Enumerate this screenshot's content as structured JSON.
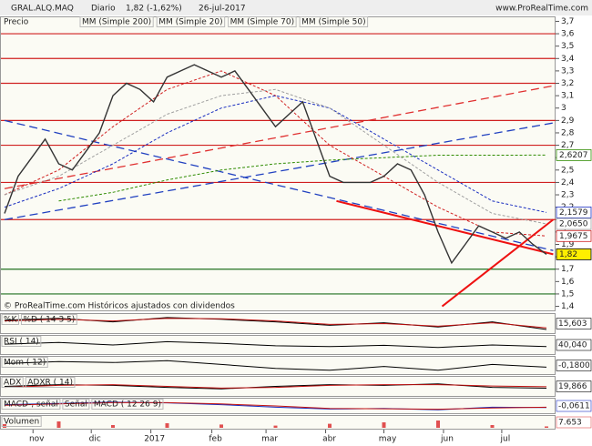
{
  "chart_data": {
    "type": "line",
    "header": {
      "symbol": "GRAL.ALQ.MAQ",
      "period": "Diario",
      "quote": "1,82 (-1,62%)",
      "date": "26-jul-2017",
      "site": "www.ProRealTime.com"
    },
    "price_label": "Precio",
    "footnote": "© ProRealTime.com  Históricos ajustados con dividendos",
    "xlim": [
      0,
      40
    ],
    "xticks": [
      {
        "value": 2.1,
        "label": "nov"
      },
      {
        "value": 6.4,
        "label": "dic"
      },
      {
        "value": 10.8,
        "label": "2017"
      },
      {
        "value": 15.3,
        "label": "feb"
      },
      {
        "value": 19.3,
        "label": "mar"
      },
      {
        "value": 23.7,
        "label": "abr"
      },
      {
        "value": 28,
        "label": "may"
      },
      {
        "value": 32.4,
        "label": "jun"
      },
      {
        "value": 36.7,
        "label": "jul"
      }
    ],
    "ylim": [
      1.36,
      3.74
    ],
    "yticks": [
      {
        "value": 3.7,
        "label": "3,7"
      },
      {
        "value": 3.6,
        "label": "3,6"
      },
      {
        "value": 3.5,
        "label": "3,5"
      },
      {
        "value": 3.4,
        "label": "3,4"
      },
      {
        "value": 3.3,
        "label": "3,3"
      },
      {
        "value": 3.2,
        "label": "3,2"
      },
      {
        "value": 3.1,
        "label": "3,1"
      },
      {
        "value": 3,
        "label": "3"
      },
      {
        "value": 2.9,
        "label": "2,9"
      },
      {
        "value": 2.8,
        "label": "2,8"
      },
      {
        "value": 2.7,
        "label": "2,7"
      },
      {
        "value": 2.6,
        "label": "2,6"
      },
      {
        "value": 2.5,
        "label": "2,5"
      },
      {
        "value": 2.4,
        "label": "2,4"
      },
      {
        "value": 2.3,
        "label": "2,3"
      },
      {
        "value": 2.2,
        "label": "2,2"
      },
      {
        "value": 2.1,
        "label": "2,1"
      },
      {
        "value": 2,
        "label": "2"
      },
      {
        "value": 1.9,
        "label": "1,9"
      },
      {
        "value": 1.8,
        "label": "1,8"
      },
      {
        "value": 1.7,
        "label": "1,7"
      },
      {
        "value": 1.6,
        "label": "1,6"
      },
      {
        "value": 1.5,
        "label": "1,5"
      },
      {
        "value": 1.4,
        "label": "1,4"
      }
    ],
    "price": {
      "color": "#333333",
      "x": [
        0,
        1,
        2,
        3,
        4,
        5,
        6,
        7,
        8,
        9,
        10,
        11,
        12,
        13,
        14,
        15,
        16,
        17,
        18,
        19,
        20,
        21,
        22,
        23,
        24,
        25,
        26,
        27,
        28,
        29,
        30,
        31,
        32,
        33,
        34,
        35,
        36,
        37,
        38,
        39,
        40
      ],
      "values": [
        2.15,
        2.45,
        2.6,
        2.75,
        2.55,
        2.5,
        2.65,
        2.8,
        3.1,
        3.2,
        3.15,
        3.05,
        3.25,
        3.3,
        3.35,
        3.3,
        3.25,
        3.3,
        3.15,
        3.0,
        2.85,
        2.95,
        3.05,
        2.75,
        2.45,
        2.4,
        2.4,
        2.4,
        2.45,
        2.55,
        2.5,
        2.3,
        2.0,
        1.75,
        1.9,
        2.05,
        2.0,
        1.95,
        2.0,
        1.9,
        1.82
      ],
      "value_labels": [
        null,
        null,
        null,
        null,
        null,
        null,
        null,
        null,
        null,
        null,
        null,
        null,
        null,
        null,
        null,
        null,
        null,
        null,
        null,
        null,
        null,
        null,
        null,
        null,
        null,
        null,
        null,
        null,
        null,
        null,
        null,
        null,
        null,
        null,
        null,
        null,
        null,
        null,
        null,
        null,
        "1,82"
      ]
    },
    "series": [
      {
        "name": "MM (Simple 200)",
        "color": "#2e8b00",
        "x": [
          4,
          8,
          12,
          16,
          20,
          24,
          28,
          32,
          36,
          40
        ],
        "values": [
          2.25,
          2.32,
          2.42,
          2.5,
          2.55,
          2.58,
          2.6,
          2.62,
          2.62,
          2.6207
        ],
        "value_labels": [
          null,
          null,
          null,
          null,
          null,
          null,
          null,
          null,
          null,
          "2,6207"
        ]
      },
      {
        "name": "MM (Simple 20)",
        "color": "#d02020",
        "x": [
          0,
          4,
          8,
          12,
          16,
          20,
          24,
          28,
          32,
          36,
          40
        ],
        "values": [
          2.3,
          2.5,
          2.85,
          3.15,
          3.3,
          3.1,
          2.7,
          2.45,
          2.2,
          2.0,
          1.9675
        ],
        "value_labels": [
          null,
          null,
          null,
          null,
          null,
          null,
          null,
          null,
          null,
          null,
          "1,9675"
        ]
      },
      {
        "name": "MM (Simple 70)",
        "color": "#1a2ec0",
        "x": [
          0,
          4,
          8,
          12,
          16,
          20,
          24,
          28,
          32,
          36,
          40
        ],
        "values": [
          2.2,
          2.35,
          2.55,
          2.8,
          3.0,
          3.1,
          3.0,
          2.75,
          2.5,
          2.25,
          2.1579
        ],
        "value_labels": [
          null,
          null,
          null,
          null,
          null,
          null,
          null,
          null,
          null,
          null,
          "2,1579"
        ]
      },
      {
        "name": "MM (Simple 50)",
        "color": "#a0a0a0",
        "x": [
          0,
          4,
          8,
          12,
          16,
          20,
          24,
          28,
          32,
          36,
          40
        ],
        "values": [
          2.3,
          2.45,
          2.7,
          2.95,
          3.1,
          3.15,
          3.0,
          2.7,
          2.4,
          2.15,
          2.065
        ],
        "value_labels": [
          null,
          null,
          null,
          null,
          null,
          null,
          null,
          null,
          null,
          null,
          "2,0650"
        ]
      }
    ],
    "levels": {
      "values": [
        3.6,
        3.4,
        3.2,
        2.9,
        2.7,
        2.4,
        2.1,
        1.7,
        1.5
      ],
      "colors": [
        "#d02020",
        "#d02020",
        "#d02020",
        "#d02020",
        "#d02020",
        "#d02020",
        "#d02020",
        "#207020",
        "#207020"
      ]
    },
    "trendlines": [
      {
        "x": [
          0,
          40.5
        ],
        "values": [
          2.35,
          3.18
        ],
        "color": "#e03030",
        "dashed": true
      },
      {
        "x": [
          0,
          40.5
        ],
        "values": [
          2.1,
          2.88
        ],
        "color": "#2040c0",
        "dashed": true
      },
      {
        "x": [
          0,
          40.5
        ],
        "values": [
          2.9,
          1.85
        ],
        "color": "#2040c0",
        "dashed": true
      },
      {
        "x": [
          24.5,
          40.5
        ],
        "values": [
          2.25,
          1.82
        ],
        "color": "#ee1111",
        "dashed": false
      },
      {
        "x": [
          32.3,
          40.5
        ],
        "values": [
          1.4,
          2.1
        ],
        "color": "#ee1111",
        "dashed": false
      }
    ],
    "panels": [
      {
        "labels": [
          {
            "text": "%K",
            "color": "#000000"
          },
          {
            "text": "%D ( 14 3 5)",
            "color": "#c01010"
          }
        ],
        "ylim": [
          0,
          100
        ],
        "x": [
          0,
          4,
          8,
          12,
          16,
          20,
          24,
          28,
          32,
          36,
          40
        ],
        "series": [
          {
            "color": "#000000",
            "values": [
              70,
              80,
              60,
              85,
              75,
              60,
              40,
              55,
              30,
              60,
              15.603
            ],
            "value_labels": [
              null,
              null,
              null,
              null,
              null,
              null,
              null,
              null,
              null,
              null,
              "15,603"
            ]
          },
          {
            "color": "#c01010",
            "values": [
              65,
              75,
              65,
              80,
              78,
              65,
              45,
              50,
              35,
              55,
              25
            ]
          }
        ]
      },
      {
        "labels": [
          {
            "text": "RSI ( 14)",
            "color": "#000000"
          }
        ],
        "ylim": [
          0,
          100
        ],
        "x": [
          0,
          4,
          8,
          12,
          16,
          20,
          24,
          28,
          32,
          36,
          40
        ],
        "series": [
          {
            "color": "#000000",
            "values": [
              55,
              65,
              50,
              70,
              60,
              45,
              40,
              48,
              35,
              50,
              40.04
            ],
            "value_labels": [
              null,
              null,
              null,
              null,
              null,
              null,
              null,
              null,
              null,
              null,
              "40,040"
            ]
          }
        ]
      },
      {
        "labels": [
          {
            "text": "Mom ( 12)",
            "color": "#000000"
          }
        ],
        "ylim": [
          -0.8,
          0.8
        ],
        "x": [
          0,
          4,
          8,
          12,
          16,
          20,
          24,
          28,
          32,
          36,
          40
        ],
        "series": [
          {
            "color": "#000000",
            "values": [
              0.2,
              0.4,
              0.3,
              0.5,
              0.1,
              -0.3,
              -0.5,
              -0.1,
              -0.5,
              0.1,
              -0.18
            ],
            "value_labels": [
              null,
              null,
              null,
              null,
              null,
              null,
              null,
              null,
              null,
              null,
              "-0,1800"
            ]
          }
        ]
      },
      {
        "labels": [
          {
            "text": "ADX",
            "color": "#000000"
          },
          {
            "text": "ADXR ( 14)",
            "color": "#c01010"
          }
        ],
        "ylim": [
          0,
          50
        ],
        "x": [
          0,
          4,
          8,
          12,
          16,
          20,
          24,
          28,
          32,
          36,
          40
        ],
        "series": [
          {
            "color": "#000000",
            "values": [
              25,
              30,
              28,
              22,
              18,
              25,
              30,
              28,
              32,
              22,
              19.866
            ],
            "value_labels": [
              null,
              null,
              null,
              null,
              null,
              null,
              null,
              null,
              null,
              null,
              "19,866"
            ]
          },
          {
            "color": "#c01010",
            "values": [
              22,
              28,
              30,
              25,
              20,
              22,
              28,
              30,
              30,
              26,
              24
            ]
          }
        ]
      },
      {
        "labels": [
          {
            "text": "MACD-, señal",
            "color": "#c01010"
          },
          {
            "text": "Señal",
            "color": "#c01010"
          },
          {
            "text": "MACD ( 12 26 9)",
            "color": "#1a2ec0"
          }
        ],
        "ylim": [
          -0.25,
          0.25
        ],
        "x": [
          0,
          4,
          8,
          12,
          16,
          20,
          24,
          28,
          32,
          36,
          40
        ],
        "series": [
          {
            "color": "#1a2ec0",
            "values": [
              0.05,
              0.1,
              0.15,
              0.12,
              0.05,
              -0.05,
              -0.12,
              -0.1,
              -0.15,
              -0.05,
              -0.0611
            ],
            "value_labels": [
              null,
              null,
              null,
              null,
              null,
              null,
              null,
              null,
              null,
              null,
              "-0,0611"
            ]
          },
          {
            "color": "#c01010",
            "values": [
              0.03,
              0.08,
              0.13,
              0.13,
              0.08,
              0,
              -0.1,
              -0.11,
              -0.13,
              -0.08,
              -0.05
            ]
          }
        ]
      },
      {
        "labels": [
          {
            "text": "Volumen",
            "color": "#c01010"
          }
        ],
        "ylim": [
          0,
          60000
        ],
        "x": [
          0,
          4,
          8,
          12,
          16,
          20,
          24,
          28,
          32,
          36,
          40
        ],
        "bars": true,
        "series": [
          {
            "color": "#e05050",
            "values": [
              20000,
              35000,
              15000,
              25000,
              18000,
              12000,
              22000,
              30000,
              40000,
              15000,
              7653
            ],
            "value_labels": [
              null,
              null,
              null,
              null,
              null,
              null,
              null,
              null,
              null,
              null,
              "7.653"
            ]
          }
        ]
      }
    ]
  }
}
